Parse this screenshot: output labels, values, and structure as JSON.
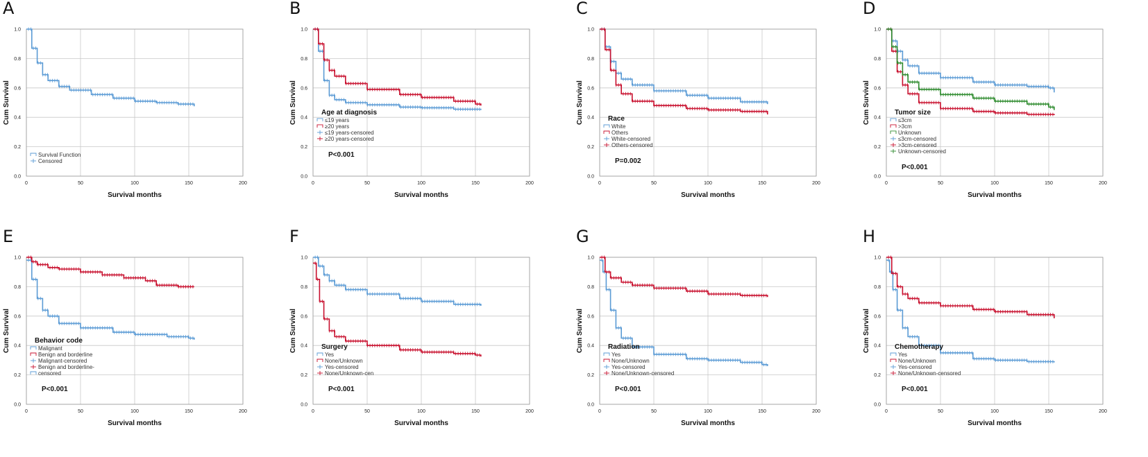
{
  "figure": {
    "panel_letters": [
      "A",
      "B",
      "C",
      "D",
      "E",
      "F",
      "G",
      "H"
    ],
    "colors": {
      "blue": "#5b9bd5",
      "red": "#c8102e",
      "green": "#2e8b2e",
      "grid": "#c8c8c8",
      "frame": "#999999"
    }
  },
  "chart_data": [
    {
      "panel": "A",
      "type": "line",
      "step": true,
      "xlabel": "Survival months",
      "ylabel": "Cum Survival",
      "xlim": [
        0,
        200
      ],
      "ylim": [
        0,
        1.0
      ],
      "xticks": [
        0,
        50,
        100,
        150,
        200
      ],
      "yticks": [
        0.0,
        0.2,
        0.4,
        0.6,
        0.8,
        1.0
      ],
      "legend_title": "",
      "legend_position": "bottom-left",
      "legend": [
        "Survival Function",
        "Censored"
      ],
      "pvalue": "",
      "series": [
        {
          "name": "Survival Function",
          "color": "blue",
          "x": [
            0,
            5,
            10,
            15,
            20,
            30,
            40,
            60,
            80,
            100,
            120,
            140,
            155
          ],
          "y": [
            1.0,
            0.87,
            0.77,
            0.69,
            0.65,
            0.61,
            0.585,
            0.555,
            0.53,
            0.51,
            0.5,
            0.49,
            0.475
          ]
        }
      ]
    },
    {
      "panel": "B",
      "type": "line",
      "step": true,
      "xlabel": "Survival months",
      "ylabel": "Cum Survival",
      "xlim": [
        0,
        200
      ],
      "ylim": [
        0,
        1.0
      ],
      "xticks": [
        0,
        50,
        100,
        150,
        200
      ],
      "yticks": [
        0.0,
        0.2,
        0.4,
        0.6,
        0.8,
        1.0
      ],
      "legend_title": "Age at diagnosis",
      "legend_position": "middle-left",
      "legend": [
        "≤19 years",
        "≥20 years",
        "≤19 years-censored",
        "≥20 years-censored"
      ],
      "pvalue": "P<0.001",
      "series": [
        {
          "name": "≤19 years",
          "color": "blue",
          "x": [
            0,
            5,
            10,
            15,
            20,
            30,
            50,
            80,
            100,
            130,
            155
          ],
          "y": [
            1.0,
            0.85,
            0.65,
            0.55,
            0.52,
            0.5,
            0.485,
            0.47,
            0.465,
            0.455,
            0.45
          ]
        },
        {
          "name": "≥20 years",
          "color": "red",
          "x": [
            0,
            5,
            10,
            15,
            20,
            30,
            50,
            80,
            100,
            130,
            150,
            155
          ],
          "y": [
            1.0,
            0.9,
            0.79,
            0.72,
            0.68,
            0.63,
            0.59,
            0.555,
            0.535,
            0.51,
            0.49,
            0.48
          ]
        }
      ]
    },
    {
      "panel": "C",
      "type": "line",
      "step": true,
      "xlabel": "Survival months",
      "ylabel": "Cum Survival",
      "xlim": [
        0,
        200
      ],
      "ylim": [
        0,
        1.0
      ],
      "xticks": [
        0,
        50,
        100,
        150,
        200
      ],
      "yticks": [
        0.0,
        0.2,
        0.4,
        0.6,
        0.8,
        1.0
      ],
      "legend_title": "Race",
      "legend_position": "bottom-left",
      "legend": [
        "White",
        "Others",
        "White-censored",
        "Others-censored"
      ],
      "pvalue": "P=0.002",
      "series": [
        {
          "name": "White",
          "color": "blue",
          "x": [
            0,
            5,
            10,
            15,
            20,
            30,
            50,
            80,
            100,
            130,
            155
          ],
          "y": [
            1.0,
            0.88,
            0.78,
            0.7,
            0.66,
            0.62,
            0.58,
            0.55,
            0.53,
            0.505,
            0.49
          ]
        },
        {
          "name": "Others",
          "color": "red",
          "x": [
            0,
            5,
            10,
            15,
            20,
            30,
            50,
            80,
            100,
            130,
            155
          ],
          "y": [
            1.0,
            0.86,
            0.72,
            0.62,
            0.56,
            0.51,
            0.48,
            0.46,
            0.45,
            0.44,
            0.42
          ]
        }
      ]
    },
    {
      "panel": "D",
      "type": "line",
      "step": true,
      "xlabel": "Survival months",
      "ylabel": "Cum Survival",
      "xlim": [
        0,
        200
      ],
      "ylim": [
        0,
        1.0
      ],
      "xticks": [
        0,
        50,
        100,
        150,
        200
      ],
      "yticks": [
        0.0,
        0.2,
        0.4,
        0.6,
        0.8,
        1.0
      ],
      "legend_title": "Tumor size",
      "legend_position": "middle-left",
      "legend": [
        "≤3cm",
        ">3cm",
        "Unknown",
        "≤3cm-censored",
        ">3cm-censored",
        "Unknown-censored"
      ],
      "pvalue": "P<0.001",
      "series": [
        {
          "name": "≤3cm",
          "color": "blue",
          "x": [
            0,
            5,
            10,
            15,
            20,
            30,
            50,
            80,
            100,
            130,
            150,
            155
          ],
          "y": [
            1.0,
            0.92,
            0.85,
            0.79,
            0.75,
            0.7,
            0.67,
            0.64,
            0.62,
            0.61,
            0.6,
            0.57
          ]
        },
        {
          "name": ">3cm",
          "color": "red",
          "x": [
            0,
            5,
            10,
            15,
            20,
            30,
            50,
            80,
            100,
            130,
            155
          ],
          "y": [
            1.0,
            0.85,
            0.71,
            0.62,
            0.56,
            0.5,
            0.46,
            0.44,
            0.43,
            0.42,
            0.415
          ]
        },
        {
          "name": "Unknown",
          "color": "green",
          "x": [
            0,
            5,
            10,
            15,
            20,
            30,
            50,
            80,
            100,
            130,
            150,
            155
          ],
          "y": [
            1.0,
            0.88,
            0.77,
            0.69,
            0.64,
            0.59,
            0.555,
            0.53,
            0.51,
            0.49,
            0.47,
            0.45
          ]
        }
      ]
    },
    {
      "panel": "E",
      "type": "line",
      "step": true,
      "xlabel": "Survival months",
      "ylabel": "Cum Survival",
      "xlim": [
        0,
        200
      ],
      "ylim": [
        0,
        1.0
      ],
      "xticks": [
        0,
        50,
        100,
        150,
        200
      ],
      "yticks": [
        0.0,
        0.2,
        0.4,
        0.6,
        0.8,
        1.0
      ],
      "legend_title": "Behavior code",
      "legend_position": "bottom-left",
      "legend": [
        "Malignant",
        "Benign and borderline",
        "Malignant-censored",
        "Benign and borderline-",
        "censored"
      ],
      "pvalue": "P<0.001",
      "series": [
        {
          "name": "Malignant",
          "color": "blue",
          "x": [
            0,
            5,
            10,
            15,
            20,
            30,
            50,
            80,
            100,
            130,
            150,
            155
          ],
          "y": [
            0.98,
            0.85,
            0.72,
            0.64,
            0.6,
            0.55,
            0.52,
            0.49,
            0.475,
            0.46,
            0.45,
            0.44
          ]
        },
        {
          "name": "Benign and borderline",
          "color": "red",
          "x": [
            0,
            5,
            10,
            20,
            30,
            50,
            70,
            90,
            110,
            120,
            140,
            155
          ],
          "y": [
            1.0,
            0.97,
            0.95,
            0.93,
            0.92,
            0.9,
            0.88,
            0.86,
            0.84,
            0.81,
            0.8,
            0.8
          ]
        }
      ]
    },
    {
      "panel": "F",
      "type": "line",
      "step": true,
      "xlabel": "Survival months",
      "ylabel": "Cum Survival",
      "xlim": [
        0,
        200
      ],
      "ylim": [
        0,
        1.0
      ],
      "xticks": [
        0,
        50,
        100,
        150,
        200
      ],
      "yticks": [
        0.0,
        0.2,
        0.4,
        0.6,
        0.8,
        1.0
      ],
      "legend_title": "Surgery",
      "legend_position": "bottom-left",
      "legend": [
        "Yes",
        "None/Unknown",
        "Yes-censored",
        "None/Unknown-cen"
      ],
      "pvalue": "P<0.001",
      "series": [
        {
          "name": "Yes",
          "color": "blue",
          "x": [
            0,
            5,
            10,
            15,
            20,
            30,
            50,
            80,
            100,
            130,
            155
          ],
          "y": [
            1.0,
            0.94,
            0.88,
            0.84,
            0.81,
            0.78,
            0.75,
            0.72,
            0.7,
            0.68,
            0.67
          ]
        },
        {
          "name": "None/Unknown",
          "color": "red",
          "x": [
            0,
            3,
            6,
            10,
            15,
            20,
            30,
            50,
            80,
            100,
            130,
            150,
            155
          ],
          "y": [
            0.96,
            0.85,
            0.7,
            0.58,
            0.5,
            0.46,
            0.43,
            0.4,
            0.37,
            0.355,
            0.345,
            0.335,
            0.325
          ]
        }
      ]
    },
    {
      "panel": "G",
      "type": "line",
      "step": true,
      "xlabel": "Survival months",
      "ylabel": "Cum Survival",
      "xlim": [
        0,
        200
      ],
      "ylim": [
        0,
        1.0
      ],
      "xticks": [
        0,
        50,
        100,
        150,
        200
      ],
      "yticks": [
        0.0,
        0.2,
        0.4,
        0.6,
        0.8,
        1.0
      ],
      "legend_title": "Radiation",
      "legend_position": "bottom-left",
      "legend": [
        "Yes",
        "None/Unknown",
        "Yes-censored",
        "None/Unknown-censored"
      ],
      "pvalue": "P<0.001",
      "series": [
        {
          "name": "Yes",
          "color": "blue",
          "x": [
            0,
            3,
            6,
            10,
            15,
            20,
            30,
            50,
            80,
            100,
            130,
            150,
            155
          ],
          "y": [
            0.98,
            0.9,
            0.78,
            0.64,
            0.52,
            0.45,
            0.39,
            0.34,
            0.31,
            0.3,
            0.285,
            0.27,
            0.26
          ]
        },
        {
          "name": "None/Unknown",
          "color": "red",
          "x": [
            0,
            5,
            10,
            20,
            30,
            50,
            80,
            100,
            130,
            155
          ],
          "y": [
            1.0,
            0.9,
            0.86,
            0.83,
            0.81,
            0.79,
            0.77,
            0.75,
            0.74,
            0.73
          ]
        }
      ]
    },
    {
      "panel": "H",
      "type": "line",
      "step": true,
      "xlabel": "Survival months",
      "ylabel": "Cum Survival",
      "xlim": [
        0,
        200
      ],
      "ylim": [
        0,
        1.0
      ],
      "xticks": [
        0,
        50,
        100,
        150,
        200
      ],
      "yticks": [
        0.0,
        0.2,
        0.4,
        0.6,
        0.8,
        1.0
      ],
      "legend_title": "Chemotherapy",
      "legend_position": "bottom-left",
      "legend": [
        "Yes",
        "None/Unknown",
        "Yes-censored",
        "None/Unknown-censored"
      ],
      "pvalue": "P<0.001",
      "series": [
        {
          "name": "Yes",
          "color": "blue",
          "x": [
            0,
            3,
            6,
            10,
            15,
            20,
            30,
            50,
            80,
            100,
            130,
            155
          ],
          "y": [
            0.98,
            0.9,
            0.78,
            0.64,
            0.52,
            0.46,
            0.4,
            0.35,
            0.31,
            0.3,
            0.29,
            0.285
          ]
        },
        {
          "name": "None/Unknown",
          "color": "red",
          "x": [
            0,
            5,
            10,
            15,
            20,
            30,
            50,
            80,
            100,
            130,
            150,
            155
          ],
          "y": [
            1.0,
            0.89,
            0.8,
            0.75,
            0.72,
            0.69,
            0.67,
            0.645,
            0.63,
            0.61,
            0.61,
            0.585
          ]
        }
      ]
    }
  ]
}
